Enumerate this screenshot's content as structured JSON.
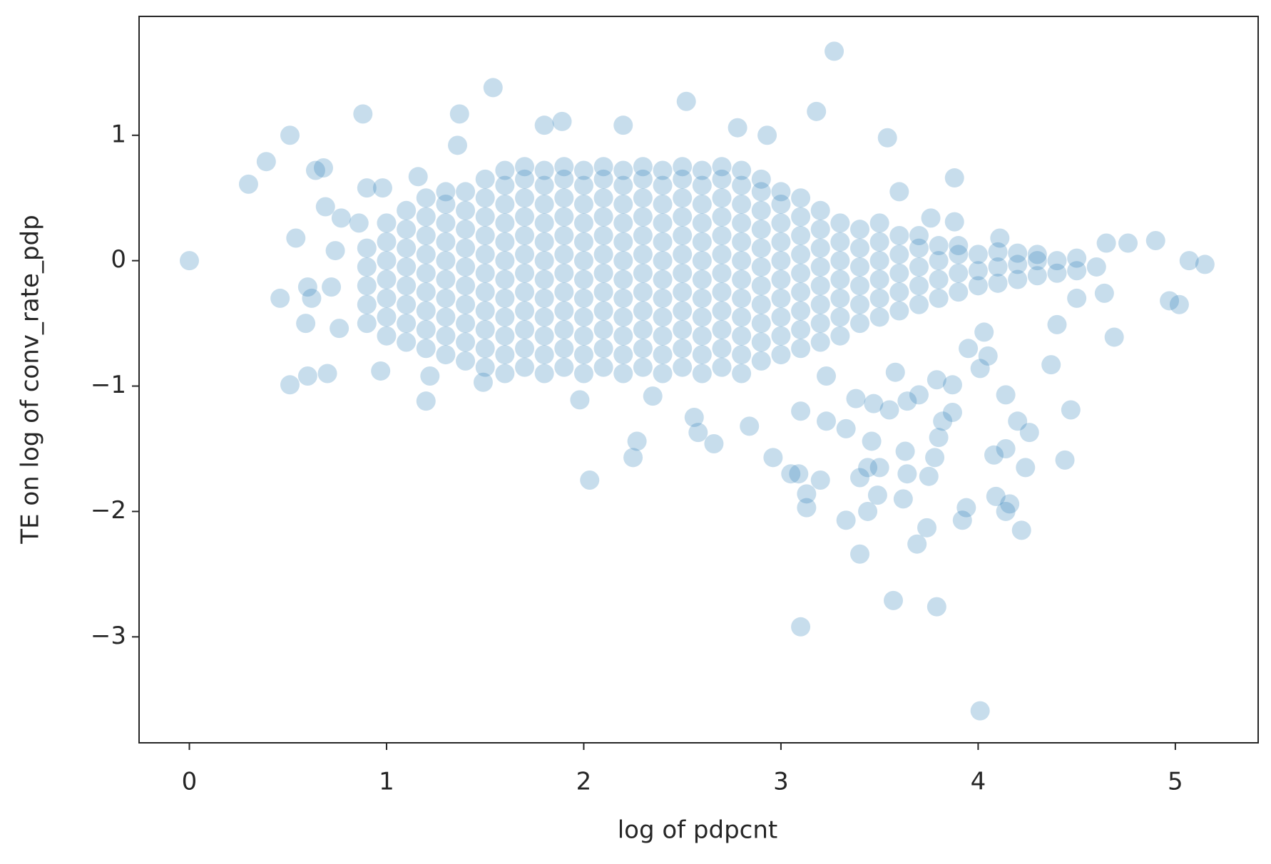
{
  "chart_data": {
    "type": "scatter",
    "x_label": "log of pdpcnt",
    "y_label": "TE on log of conv_rate_pdp",
    "color": "#1f77b4",
    "alpha": 0.25,
    "xlim": [
      -0.255,
      5.42
    ],
    "ylim": [
      -3.845,
      1.948
    ],
    "xticks": [
      0,
      1,
      2,
      3,
      4,
      5
    ],
    "yticks": [
      {
        "value": -3,
        "label": "−3"
      },
      {
        "value": -2,
        "label": "−2"
      },
      {
        "value": -1,
        "label": "−1"
      },
      0,
      1
    ],
    "x": [
      0.9,
      0.9,
      0.9,
      0.9,
      0.9,
      1.0,
      1.0,
      1.0,
      1.0,
      1.0,
      1.0,
      1.0,
      1.1,
      1.1,
      1.1,
      1.1,
      1.1,
      1.1,
      1.1,
      1.1,
      1.2,
      1.2,
      1.2,
      1.2,
      1.2,
      1.2,
      1.2,
      1.2,
      1.2,
      1.3,
      1.3,
      1.3,
      1.3,
      1.3,
      1.3,
      1.3,
      1.3,
      1.3,
      1.3,
      1.4,
      1.4,
      1.4,
      1.4,
      1.4,
      1.4,
      1.4,
      1.4,
      1.4,
      1.4,
      1.5,
      1.5,
      1.5,
      1.5,
      1.5,
      1.5,
      1.5,
      1.5,
      1.5,
      1.5,
      1.5,
      1.6,
      1.6,
      1.6,
      1.6,
      1.6,
      1.6,
      1.6,
      1.6,
      1.6,
      1.6,
      1.6,
      1.6,
      1.7,
      1.7,
      1.7,
      1.7,
      1.7,
      1.7,
      1.7,
      1.7,
      1.7,
      1.7,
      1.7,
      1.7,
      1.8,
      1.8,
      1.8,
      1.8,
      1.8,
      1.8,
      1.8,
      1.8,
      1.8,
      1.8,
      1.8,
      1.8,
      1.9,
      1.9,
      1.9,
      1.9,
      1.9,
      1.9,
      1.9,
      1.9,
      1.9,
      1.9,
      1.9,
      1.9,
      2.0,
      2.0,
      2.0,
      2.0,
      2.0,
      2.0,
      2.0,
      2.0,
      2.0,
      2.0,
      2.0,
      2.0,
      2.1,
      2.1,
      2.1,
      2.1,
      2.1,
      2.1,
      2.1,
      2.1,
      2.1,
      2.1,
      2.1,
      2.1,
      2.2,
      2.2,
      2.2,
      2.2,
      2.2,
      2.2,
      2.2,
      2.2,
      2.2,
      2.2,
      2.2,
      2.2,
      2.3,
      2.3,
      2.3,
      2.3,
      2.3,
      2.3,
      2.3,
      2.3,
      2.3,
      2.3,
      2.3,
      2.3,
      2.4,
      2.4,
      2.4,
      2.4,
      2.4,
      2.4,
      2.4,
      2.4,
      2.4,
      2.4,
      2.4,
      2.4,
      2.5,
      2.5,
      2.5,
      2.5,
      2.5,
      2.5,
      2.5,
      2.5,
      2.5,
      2.5,
      2.5,
      2.5,
      2.6,
      2.6,
      2.6,
      2.6,
      2.6,
      2.6,
      2.6,
      2.6,
      2.6,
      2.6,
      2.6,
      2.6,
      2.7,
      2.7,
      2.7,
      2.7,
      2.7,
      2.7,
      2.7,
      2.7,
      2.7,
      2.7,
      2.7,
      2.7,
      2.8,
      2.8,
      2.8,
      2.8,
      2.8,
      2.8,
      2.8,
      2.8,
      2.8,
      2.8,
      2.8,
      2.8,
      2.9,
      2.9,
      2.9,
      2.9,
      2.9,
      2.9,
      2.9,
      2.9,
      2.9,
      2.9,
      2.9,
      3.0,
      3.0,
      3.0,
      3.0,
      3.0,
      3.0,
      3.0,
      3.0,
      3.0,
      3.0,
      3.1,
      3.1,
      3.1,
      3.1,
      3.1,
      3.1,
      3.1,
      3.1,
      3.1,
      3.2,
      3.2,
      3.2,
      3.2,
      3.2,
      3.2,
      3.2,
      3.2,
      3.3,
      3.3,
      3.3,
      3.3,
      3.3,
      3.3,
      3.3,
      3.4,
      3.4,
      3.4,
      3.4,
      3.4,
      3.4,
      3.5,
      3.5,
      3.5,
      3.5,
      3.5,
      3.5,
      3.6,
      3.6,
      3.6,
      3.6,
      3.6,
      3.7,
      3.7,
      3.7,
      3.7,
      3.7,
      3.8,
      3.8,
      3.8,
      3.8,
      3.9,
      3.9,
      3.9,
      3.9,
      4.0,
      4.0,
      4.0,
      4.1,
      4.1,
      4.1,
      4.2,
      4.2,
      4.2,
      4.3,
      4.3,
      4.3,
      4.4,
      4.4,
      4.5,
      4.5,
      4.6,
      0,
      0.3,
      0.39,
      0.51,
      0.46,
      0.51,
      0.6,
      0.7,
      0.59,
      0.54,
      0.6,
      0.62,
      0.64,
      0.68,
      0.69,
      0.77,
      0.86,
      0.74,
      0.72,
      0.76,
      0.88,
      0.9,
      0.97,
      0.98,
      1.2,
      1.22,
      1.36,
      1.37,
      1.54,
      1.16,
      1.49,
      1.8,
      1.89,
      2.2,
      2.52,
      2.78,
      2.93,
      3.18,
      3.27,
      3.54,
      3.88,
      3.6,
      3.76,
      3.88,
      4.11,
      4.65,
      4.76,
      4.9,
      5.07,
      5.15,
      4.97,
      5.02,
      4.69,
      4.64,
      4.5,
      4.4,
      4.37,
      4.47,
      4.44,
      4.24,
      4.26,
      4.2,
      4.14,
      4.08,
      4.14,
      4.09,
      4.16,
      4.14,
      4.22,
      3.94,
      3.92,
      3.8,
      3.87,
      3.82,
      3.79,
      3.87,
      4.01,
      3.79,
      3.57,
      3.1,
      3.4,
      3.69,
      3.74,
      3.33,
      3.44,
      3.13,
      3.13,
      3.2,
      3.09,
      2.96,
      3.05,
      3.4,
      3.49,
      3.62,
      3.63,
      3.64,
      3.75,
      3.78,
      3.46,
      3.5,
      3.44,
      3.33,
      3.23,
      3.1,
      3.38,
      3.47,
      3.55,
      3.64,
      3.7,
      2.84,
      2.66,
      2.58,
      2.56,
      2.27,
      2.25,
      2.03,
      2.35,
      1.98,
      3.58,
      3.23,
      4.01,
      4.05,
      3.95,
      4.03
    ],
    "y": [
      -0.5,
      -0.35,
      -0.2,
      -0.05,
      0.1,
      -0.6,
      -0.45,
      -0.3,
      -0.15,
      0,
      0.15,
      0.3,
      -0.65,
      -0.5,
      -0.35,
      -0.2,
      -0.05,
      0.1,
      0.25,
      0.4,
      -0.7,
      -0.55,
      -0.4,
      -0.25,
      -0.1,
      0.05,
      0.2,
      0.35,
      0.5,
      -0.75,
      -0.6,
      -0.45,
      -0.3,
      -0.15,
      0,
      0.15,
      0.3,
      0.45,
      0.55,
      -0.8,
      -0.65,
      -0.5,
      -0.35,
      -0.2,
      -0.05,
      0.1,
      0.25,
      0.4,
      0.55,
      -0.85,
      -0.7,
      -0.55,
      -0.4,
      -0.25,
      -0.1,
      0.05,
      0.2,
      0.35,
      0.5,
      0.65,
      -0.9,
      -0.75,
      -0.6,
      -0.45,
      -0.3,
      -0.15,
      0,
      0.15,
      0.3,
      0.45,
      0.6,
      0.72,
      -0.85,
      -0.7,
      -0.55,
      -0.4,
      -0.25,
      -0.1,
      0.05,
      0.2,
      0.35,
      0.5,
      0.65,
      0.75,
      -0.9,
      -0.75,
      -0.6,
      -0.45,
      -0.3,
      -0.15,
      0,
      0.15,
      0.3,
      0.45,
      0.6,
      0.72,
      -0.85,
      -0.7,
      -0.55,
      -0.4,
      -0.25,
      -0.1,
      0.05,
      0.2,
      0.35,
      0.5,
      0.65,
      0.75,
      -0.9,
      -0.75,
      -0.6,
      -0.45,
      -0.3,
      -0.15,
      0,
      0.15,
      0.3,
      0.45,
      0.6,
      0.72,
      -0.85,
      -0.7,
      -0.55,
      -0.4,
      -0.25,
      -0.1,
      0.05,
      0.2,
      0.35,
      0.5,
      0.65,
      0.75,
      -0.9,
      -0.75,
      -0.6,
      -0.45,
      -0.3,
      -0.15,
      0,
      0.15,
      0.3,
      0.45,
      0.6,
      0.72,
      -0.85,
      -0.7,
      -0.55,
      -0.4,
      -0.25,
      -0.1,
      0.05,
      0.2,
      0.35,
      0.5,
      0.65,
      0.75,
      -0.9,
      -0.75,
      -0.6,
      -0.45,
      -0.3,
      -0.15,
      0,
      0.15,
      0.3,
      0.45,
      0.6,
      0.72,
      -0.85,
      -0.7,
      -0.55,
      -0.4,
      -0.25,
      -0.1,
      0.05,
      0.2,
      0.35,
      0.5,
      0.65,
      0.75,
      -0.9,
      -0.75,
      -0.6,
      -0.45,
      -0.3,
      -0.15,
      0,
      0.15,
      0.3,
      0.45,
      0.6,
      0.72,
      -0.85,
      -0.7,
      -0.55,
      -0.4,
      -0.25,
      -0.1,
      0.05,
      0.2,
      0.35,
      0.5,
      0.65,
      0.75,
      -0.9,
      -0.75,
      -0.6,
      -0.45,
      -0.3,
      -0.15,
      0,
      0.15,
      0.3,
      0.45,
      0.6,
      0.72,
      -0.8,
      -0.65,
      -0.5,
      -0.35,
      -0.2,
      -0.05,
      0.1,
      0.25,
      0.4,
      0.55,
      0.65,
      -0.75,
      -0.6,
      -0.45,
      -0.3,
      -0.15,
      0,
      0.15,
      0.3,
      0.45,
      0.55,
      -0.7,
      -0.55,
      -0.4,
      -0.25,
      -0.1,
      0.05,
      0.2,
      0.35,
      0.5,
      -0.65,
      -0.5,
      -0.35,
      -0.2,
      -0.05,
      0.1,
      0.25,
      0.4,
      -0.6,
      -0.45,
      -0.3,
      -0.15,
      0,
      0.15,
      0.3,
      -0.5,
      -0.35,
      -0.2,
      -0.05,
      0.1,
      0.25,
      -0.45,
      -0.3,
      -0.15,
      0,
      0.15,
      0.3,
      -0.4,
      -0.25,
      -0.1,
      0.05,
      0.2,
      -0.35,
      -0.2,
      -0.05,
      0.1,
      0.2,
      -0.3,
      -0.15,
      0,
      0.12,
      -0.25,
      -0.1,
      0.05,
      0.12,
      -0.2,
      -0.08,
      0.05,
      -0.18,
      -0.05,
      0.07,
      -0.15,
      -0.03,
      0.06,
      -0.12,
      0,
      0.05,
      -0.1,
      0,
      -0.08,
      0.02,
      -0.05,
      0,
      0.61,
      0.79,
      1.0,
      -0.3,
      -0.99,
      -0.92,
      -0.9,
      -0.5,
      0.18,
      -0.21,
      -0.3,
      0.72,
      0.74,
      0.43,
      0.34,
      0.3,
      0.08,
      -0.21,
      -0.54,
      1.17,
      0.58,
      -0.88,
      0.58,
      -1.12,
      -0.92,
      0.92,
      1.17,
      1.38,
      0.67,
      -0.97,
      1.08,
      1.11,
      1.08,
      1.27,
      1.06,
      1.0,
      1.19,
      1.67,
      0.98,
      0.66,
      0.55,
      0.34,
      0.31,
      0.18,
      0.14,
      0.14,
      0.16,
      0.0,
      -0.03,
      -0.32,
      -0.35,
      -0.61,
      -0.26,
      -0.3,
      -0.51,
      -0.83,
      -1.19,
      -1.59,
      -1.65,
      -1.37,
      -1.28,
      -1.07,
      -1.55,
      -1.5,
      -1.88,
      -1.94,
      -2.0,
      -2.15,
      -1.97,
      -2.07,
      -1.41,
      -1.21,
      -1.28,
      -0.95,
      -0.99,
      -3.59,
      -2.76,
      -2.71,
      -2.92,
      -2.34,
      -2.26,
      -2.13,
      -2.07,
      -2.0,
      -1.97,
      -1.86,
      -1.75,
      -1.7,
      -1.57,
      -1.7,
      -1.73,
      -1.87,
      -1.9,
      -1.52,
      -1.7,
      -1.72,
      -1.57,
      -1.44,
      -1.65,
      -1.65,
      -1.34,
      -1.28,
      -1.2,
      -1.1,
      -1.14,
      -1.19,
      -1.12,
      -1.07,
      -1.32,
      -1.46,
      -1.37,
      -1.25,
      -1.44,
      -1.57,
      -1.75,
      -1.08,
      -1.11,
      -0.89,
      -0.92,
      -0.86,
      -0.76,
      -0.7,
      -0.57
    ]
  }
}
